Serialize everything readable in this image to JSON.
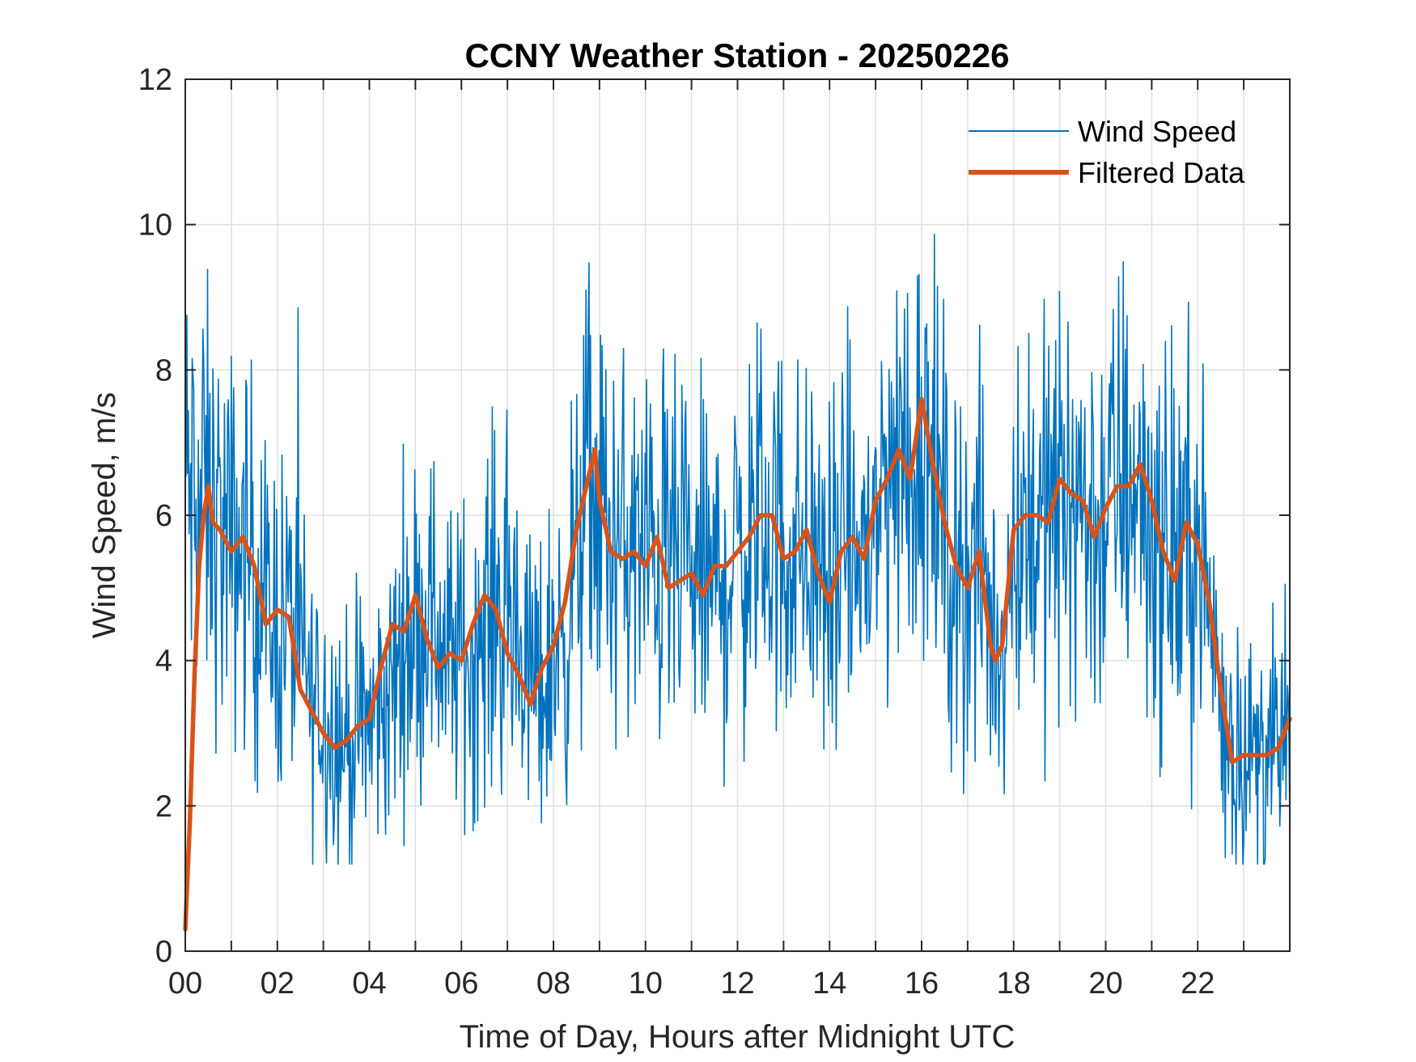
{
  "chart_data": {
    "type": "line",
    "title": "CCNY Weather Station - 20250226",
    "xlabel": "Time of Day, Hours after Midnight UTC",
    "ylabel": "Wind Speed, m/s",
    "xlim": [
      0,
      24
    ],
    "ylim": [
      0,
      12
    ],
    "x_ticks": [
      0,
      2,
      4,
      6,
      8,
      10,
      12,
      14,
      16,
      18,
      20,
      22
    ],
    "x_tick_labels": [
      "00",
      "02",
      "04",
      "06",
      "08",
      "10",
      "12",
      "14",
      "16",
      "18",
      "20",
      "22"
    ],
    "x_minor_grid_step": 1,
    "y_ticks": [
      0,
      2,
      4,
      6,
      8,
      10,
      12
    ],
    "y_tick_labels": [
      "0",
      "2",
      "4",
      "6",
      "8",
      "10",
      "12"
    ],
    "grid": true,
    "legend_position": "top-right",
    "series": [
      {
        "name": "Wind Speed",
        "color": "#0072BD",
        "style": "thin",
        "x": [
          0.0,
          0.25,
          0.4,
          0.5,
          0.75,
          1.0,
          1.25,
          1.5,
          1.75,
          2.0,
          2.25,
          2.5,
          2.75,
          3.0,
          3.25,
          3.5,
          3.75,
          4.0,
          4.25,
          4.5,
          4.75,
          5.0,
          5.25,
          5.5,
          5.75,
          6.0,
          6.25,
          6.5,
          6.75,
          7.0,
          7.25,
          7.5,
          7.75,
          8.0,
          8.25,
          8.5,
          8.75,
          9.0,
          9.25,
          9.5,
          9.75,
          10.0,
          10.25,
          10.5,
          10.75,
          11.0,
          11.25,
          11.5,
          11.75,
          12.0,
          12.25,
          12.5,
          12.75,
          13.0,
          13.25,
          13.5,
          13.75,
          14.0,
          14.25,
          14.5,
          14.75,
          15.0,
          15.25,
          15.5,
          15.75,
          16.0,
          16.25,
          16.5,
          16.75,
          17.0,
          17.25,
          17.5,
          17.75,
          18.0,
          18.25,
          18.5,
          18.75,
          19.0,
          19.25,
          19.5,
          19.75,
          20.0,
          20.25,
          20.5,
          20.75,
          21.0,
          21.25,
          21.5,
          21.75,
          22.0,
          22.25,
          22.5,
          22.75,
          23.0,
          23.25,
          23.5,
          23.75,
          24.0
        ],
        "y": [
          6.5,
          5.9,
          6.3,
          6.1,
          5.8,
          5.5,
          5.6,
          5.3,
          4.6,
          4.6,
          4.6,
          4.1,
          3.5,
          3.3,
          3.1,
          2.9,
          3.0,
          3.1,
          3.2,
          3.6,
          4.4,
          4.5,
          4.7,
          4.4,
          4.0,
          4.1,
          4.0,
          4.5,
          4.8,
          4.5,
          4.2,
          3.8,
          3.6,
          4.1,
          4.4,
          5.3,
          6.4,
          6.1,
          5.6,
          5.5,
          5.5,
          5.4,
          5.6,
          5.3,
          5.2,
          5.1,
          5.1,
          5.0,
          5.2,
          5.4,
          5.6,
          5.9,
          5.8,
          5.6,
          5.5,
          5.6,
          5.2,
          4.9,
          5.3,
          5.5,
          5.4,
          5.9,
          6.5,
          6.9,
          6.6,
          7.4,
          6.6,
          5.7,
          5.2,
          5.2,
          5.4,
          4.4,
          4.2,
          5.7,
          6.0,
          6.0,
          5.9,
          6.2,
          6.4,
          6.2,
          5.8,
          6.1,
          6.4,
          6.6,
          6.5,
          5.9,
          5.3,
          5.3,
          5.7,
          5.5,
          4.8,
          3.5,
          2.8,
          2.7,
          2.7,
          2.8,
          2.7,
          3.2
        ]
      },
      {
        "name": "Filtered Data",
        "color": "#D95319",
        "style": "thick",
        "x": [
          0.0,
          0.1,
          0.2,
          0.3,
          0.4,
          0.5,
          0.6,
          0.75,
          1.0,
          1.25,
          1.5,
          1.75,
          2.0,
          2.25,
          2.5,
          2.75,
          3.0,
          3.25,
          3.5,
          3.75,
          4.0,
          4.25,
          4.5,
          4.75,
          5.0,
          5.25,
          5.5,
          5.75,
          6.0,
          6.25,
          6.5,
          6.75,
          7.0,
          7.25,
          7.5,
          7.75,
          8.0,
          8.25,
          8.5,
          8.75,
          8.9,
          9.0,
          9.25,
          9.5,
          9.75,
          10.0,
          10.25,
          10.5,
          10.75,
          11.0,
          11.25,
          11.5,
          11.75,
          12.0,
          12.25,
          12.5,
          12.75,
          13.0,
          13.25,
          13.5,
          13.75,
          14.0,
          14.25,
          14.5,
          14.75,
          15.0,
          15.25,
          15.5,
          15.75,
          16.0,
          16.25,
          16.5,
          16.75,
          17.0,
          17.25,
          17.5,
          17.6,
          17.75,
          18.0,
          18.25,
          18.5,
          18.75,
          19.0,
          19.25,
          19.5,
          19.75,
          20.0,
          20.25,
          20.5,
          20.75,
          21.0,
          21.25,
          21.5,
          21.75,
          22.0,
          22.25,
          22.5,
          22.75,
          23.0,
          23.25,
          23.5,
          23.75,
          24.0
        ],
        "y": [
          0.3,
          1.8,
          3.8,
          5.3,
          6.0,
          6.4,
          5.9,
          5.8,
          5.5,
          5.7,
          5.3,
          4.5,
          4.7,
          4.6,
          3.6,
          3.3,
          3.0,
          2.8,
          2.9,
          3.1,
          3.2,
          3.9,
          4.5,
          4.4,
          4.9,
          4.3,
          3.9,
          4.1,
          4.0,
          4.5,
          4.9,
          4.7,
          4.1,
          3.8,
          3.4,
          3.9,
          4.2,
          4.8,
          5.8,
          6.5,
          6.9,
          6.2,
          5.5,
          5.4,
          5.5,
          5.3,
          5.7,
          5.0,
          5.1,
          5.2,
          4.9,
          5.3,
          5.3,
          5.5,
          5.7,
          6.0,
          6.0,
          5.4,
          5.5,
          5.8,
          5.2,
          4.8,
          5.5,
          5.7,
          5.4,
          6.2,
          6.5,
          6.9,
          6.5,
          7.6,
          6.7,
          5.9,
          5.3,
          5.0,
          5.5,
          4.2,
          4.0,
          4.2,
          5.8,
          6.0,
          6.0,
          5.9,
          6.5,
          6.3,
          6.2,
          5.7,
          6.1,
          6.4,
          6.4,
          6.7,
          6.2,
          5.5,
          5.1,
          5.9,
          5.6,
          4.8,
          3.6,
          2.6,
          2.7,
          2.7,
          2.7,
          2.8,
          3.2
        ]
      }
    ]
  }
}
